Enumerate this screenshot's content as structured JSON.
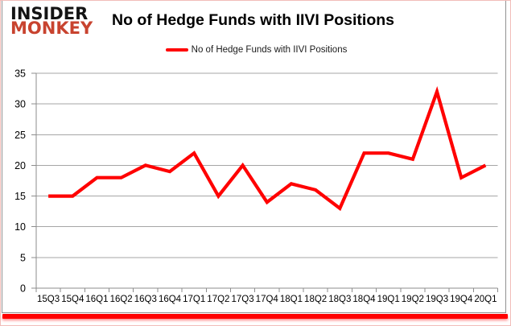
{
  "logo": {
    "line1": "INSIDER",
    "line2": "MONKEY",
    "insider_color": "#141414",
    "monkey_color": "#c8432f"
  },
  "header": {
    "title": "No of Hedge Funds with IIVI Positions"
  },
  "legend": {
    "label": "No of Hedge Funds with IIVI Positions",
    "swatch_color": "#ff0000"
  },
  "chart_data": {
    "type": "line",
    "title": "No of Hedge Funds with IIVI Positions",
    "categories": [
      "15Q3",
      "15Q4",
      "16Q1",
      "16Q2",
      "16Q3",
      "16Q4",
      "17Q1",
      "17Q2",
      "17Q3",
      "17Q4",
      "18Q1",
      "18Q2",
      "18Q3",
      "18Q4",
      "19Q1",
      "19Q2",
      "19Q3",
      "19Q4",
      "20Q1"
    ],
    "series": [
      {
        "name": "No of Hedge Funds with IIVI Positions",
        "color": "#ff0000",
        "values": [
          15,
          15,
          18,
          18,
          20,
          19,
          22,
          15,
          20,
          14,
          17,
          16,
          13,
          22,
          22,
          21,
          32,
          18,
          20
        ]
      }
    ],
    "xlabel": "",
    "ylabel": "",
    "ylim": [
      0,
      35
    ],
    "yticks": [
      0,
      5,
      10,
      15,
      20,
      25,
      30,
      35
    ],
    "grid": true,
    "legend_position": "top"
  },
  "colors": {
    "line": "#ff0000",
    "grid": "#a6a6a6",
    "axis": "#8c8c8c",
    "text": "#000000",
    "card_border": "#919191",
    "outer_border": "#f2bdb9",
    "accent_bar": "#ff0000",
    "background": "#ffffff"
  }
}
